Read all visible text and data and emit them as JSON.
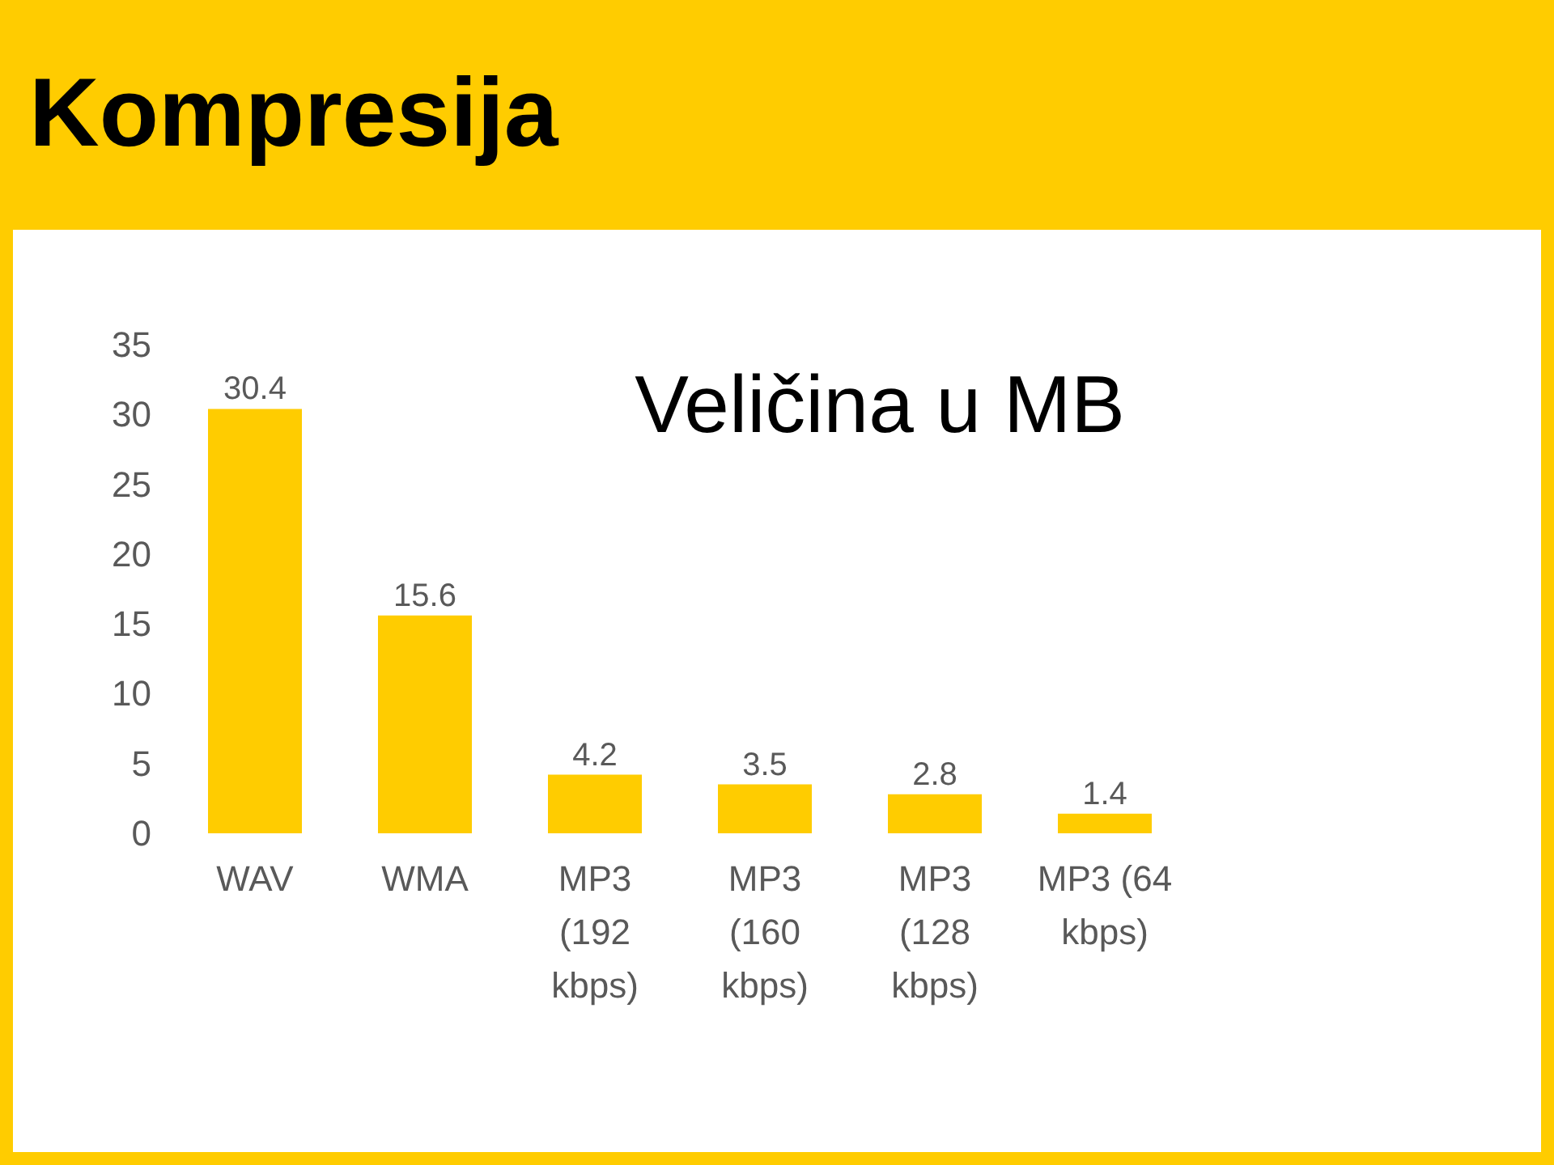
{
  "chart_data": {
    "type": "bar",
    "title": "Kompresija",
    "subtitle": "Veličina u MB",
    "categories": [
      "WAV",
      "WMA",
      "MP3 (192 kbps)",
      "MP3 (160 kbps)",
      "MP3 (128 kbps)",
      "MP3 (64 kbps)"
    ],
    "values": [
      30.4,
      15.6,
      4.2,
      3.5,
      2.8,
      1.4
    ],
    "color": "#ffcc00",
    "ylim": [
      0,
      35
    ],
    "yticks": [
      0,
      5,
      10,
      15,
      20,
      25,
      30,
      35
    ],
    "grid": false,
    "data_labels": true
  }
}
